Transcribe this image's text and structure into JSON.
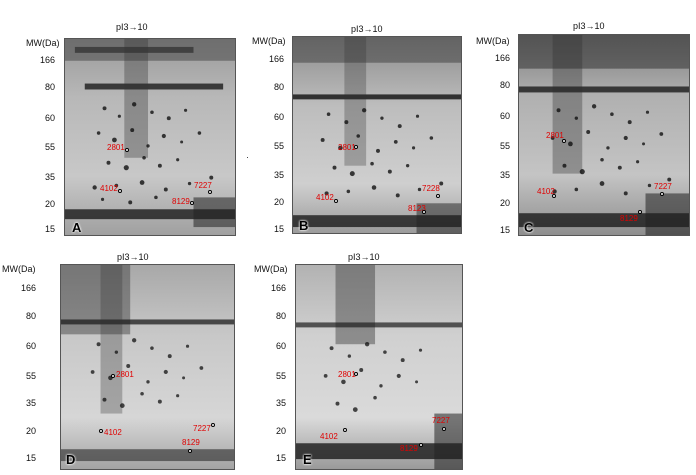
{
  "mw_title": "MW(Da)",
  "pi_header": "pI3→10",
  "mw_labels": [
    "166",
    "80",
    "60",
    "55",
    "35",
    "20",
    "15"
  ],
  "spot_color": "#e00000",
  "panels": [
    {
      "letter": "A",
      "spots": [
        {
          "label": "2801"
        },
        {
          "label": "4102"
        },
        {
          "label": "7227"
        },
        {
          "label": "8129"
        }
      ]
    },
    {
      "letter": "B",
      "spots": [
        {
          "label": "2801"
        },
        {
          "label": "4102"
        },
        {
          "label": "7228"
        },
        {
          "label": "8123"
        }
      ]
    },
    {
      "letter": "C",
      "spots": [
        {
          "label": "2801"
        },
        {
          "label": "4102"
        },
        {
          "label": "7227"
        },
        {
          "label": "8129"
        }
      ]
    },
    {
      "letter": "D",
      "spots": [
        {
          "label": "2801"
        },
        {
          "label": "4102"
        },
        {
          "label": "7227"
        },
        {
          "label": "8129"
        }
      ]
    },
    {
      "letter": "E",
      "spots": [
        {
          "label": "2801"
        },
        {
          "label": "4102"
        },
        {
          "label": "7227"
        },
        {
          "label": "8129"
        }
      ]
    }
  ]
}
